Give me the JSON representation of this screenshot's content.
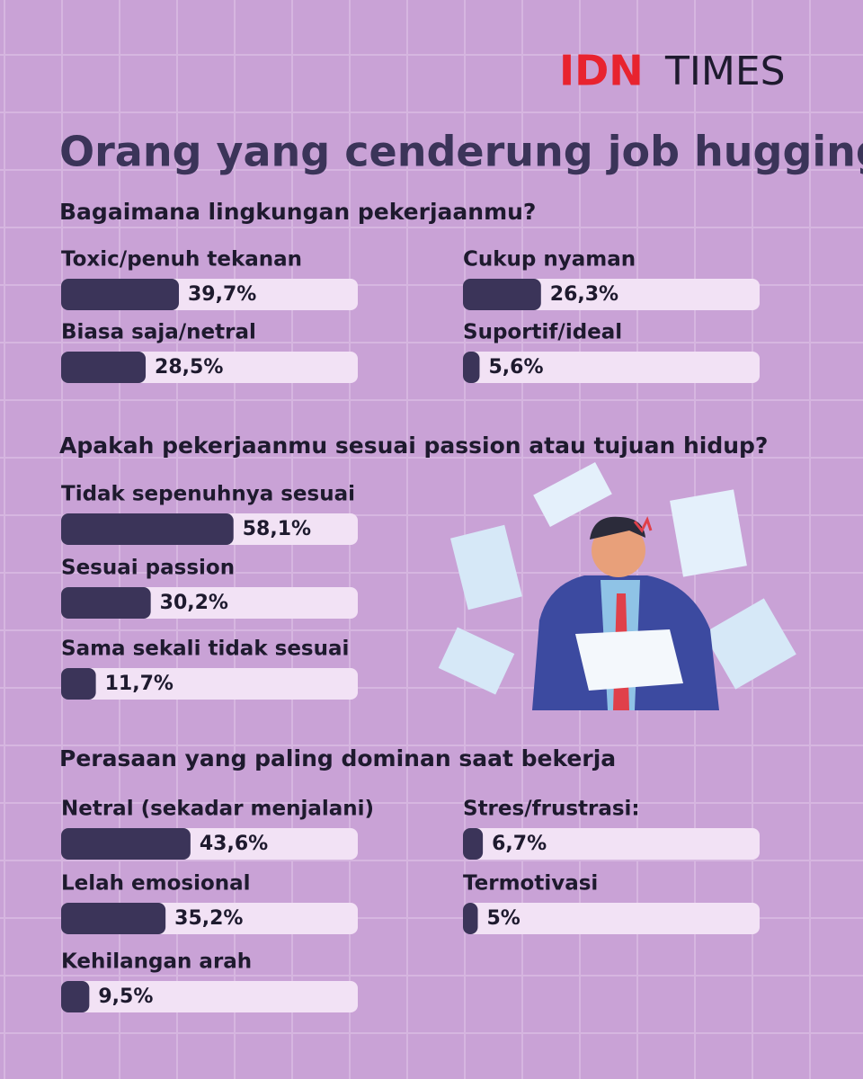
{
  "brand": {
    "idn": "IDN",
    "times": "TIMES"
  },
  "title": "Orang yang cenderung job hugging",
  "sections": [
    {
      "question": "Bagaimana lingkungan pekerjaanmu?",
      "items": [
        {
          "label": "Toxic/penuh tekanan",
          "value": 39.7,
          "value_label": "39,7%"
        },
        {
          "label": "Cukup nyaman",
          "value": 26.3,
          "value_label": "26,3%"
        },
        {
          "label": "Biasa saja/netral",
          "value": 28.5,
          "value_label": "28,5%"
        },
        {
          "label": "Suportif/ideal",
          "value": 5.6,
          "value_label": "5,6%"
        }
      ]
    },
    {
      "question": "Apakah pekerjaanmu sesuai passion atau tujuan hidup?",
      "items": [
        {
          "label": "Tidak sepenuhnya sesuai",
          "value": 58.1,
          "value_label": "58,1%"
        },
        {
          "label": "Sesuai passion",
          "value": 30.2,
          "value_label": "30,2%"
        },
        {
          "label": "Sama sekali tidak sesuai",
          "value": 11.7,
          "value_label": "11,7%"
        }
      ]
    },
    {
      "question": "Perasaan yang paling dominan saat bekerja",
      "items": [
        {
          "label": "Netral (sekadar menjalani)",
          "value": 43.6,
          "value_label": "43,6%"
        },
        {
          "label": "Stres/frustrasi:",
          "value": 6.7,
          "value_label": "6,7%"
        },
        {
          "label": "Lelah emosional",
          "value": 35.2,
          "value_label": "35,2%"
        },
        {
          "label": "Termotivasi",
          "value": 5,
          "value_label": "5%"
        },
        {
          "label": "Kehilangan arah",
          "value": 9.5,
          "value_label": "9,5%"
        }
      ]
    }
  ]
}
